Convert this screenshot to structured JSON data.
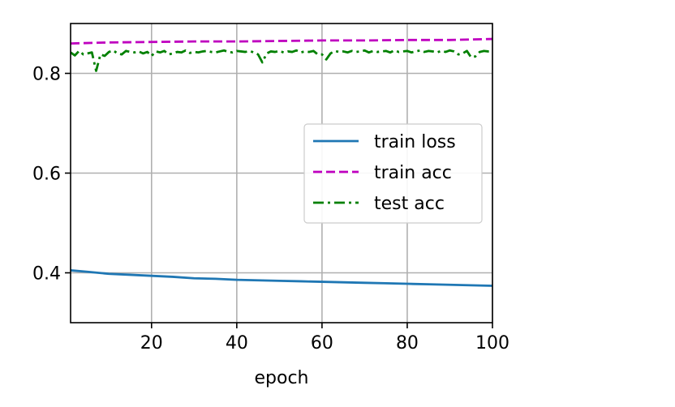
{
  "chart_data": {
    "type": "line",
    "xlabel": "epoch",
    "ylabel": "",
    "xlim": [
      1,
      100
    ],
    "ylim": [
      0.3,
      0.9
    ],
    "xticks": [
      20,
      40,
      60,
      80,
      100
    ],
    "yticks": [
      0.4,
      0.6,
      0.8
    ],
    "grid": true,
    "legend_position": "center-right",
    "series": [
      {
        "name": "train loss",
        "color": "#1f77b4",
        "style": "solid",
        "x": [
          1,
          5,
          10,
          15,
          20,
          25,
          30,
          35,
          40,
          45,
          50,
          55,
          60,
          65,
          70,
          75,
          80,
          85,
          90,
          95,
          100
        ],
        "y": [
          0.405,
          0.402,
          0.398,
          0.396,
          0.394,
          0.392,
          0.389,
          0.388,
          0.386,
          0.385,
          0.384,
          0.383,
          0.382,
          0.381,
          0.38,
          0.379,
          0.378,
          0.377,
          0.376,
          0.375,
          0.374
        ]
      },
      {
        "name": "train acc",
        "color": "#bf00bf",
        "style": "dashed",
        "x": [
          1,
          10,
          20,
          30,
          40,
          50,
          60,
          70,
          80,
          90,
          100
        ],
        "y": [
          0.86,
          0.862,
          0.863,
          0.864,
          0.864,
          0.865,
          0.866,
          0.866,
          0.867,
          0.867,
          0.869
        ]
      },
      {
        "name": "test acc",
        "color": "#008000",
        "style": "dashdot",
        "x": [
          1,
          2,
          3,
          4,
          5,
          6,
          7,
          8,
          9,
          10,
          11,
          12,
          13,
          14,
          15,
          16,
          17,
          18,
          19,
          20,
          21,
          22,
          23,
          24,
          25,
          26,
          27,
          28,
          29,
          30,
          31,
          32,
          33,
          34,
          35,
          36,
          37,
          38,
          39,
          40,
          41,
          42,
          43,
          44,
          45,
          46,
          47,
          48,
          49,
          50,
          51,
          52,
          53,
          54,
          55,
          56,
          57,
          58,
          59,
          60,
          61,
          62,
          63,
          64,
          65,
          66,
          67,
          68,
          69,
          70,
          71,
          72,
          73,
          74,
          75,
          76,
          77,
          78,
          79,
          80,
          81,
          82,
          83,
          84,
          85,
          86,
          87,
          88,
          89,
          90,
          91,
          92,
          93,
          94,
          95,
          96,
          97,
          98,
          99,
          100
        ],
        "y": [
          0.842,
          0.836,
          0.845,
          0.838,
          0.84,
          0.842,
          0.805,
          0.838,
          0.835,
          0.843,
          0.846,
          0.84,
          0.838,
          0.845,
          0.843,
          0.842,
          0.844,
          0.84,
          0.843,
          0.835,
          0.844,
          0.842,
          0.845,
          0.838,
          0.84,
          0.843,
          0.842,
          0.846,
          0.841,
          0.843,
          0.842,
          0.844,
          0.845,
          0.843,
          0.842,
          0.844,
          0.846,
          0.843,
          0.842,
          0.845,
          0.844,
          0.843,
          0.845,
          0.842,
          0.838,
          0.822,
          0.84,
          0.844,
          0.843,
          0.845,
          0.842,
          0.844,
          0.843,
          0.846,
          0.842,
          0.844,
          0.843,
          0.845,
          0.838,
          0.838,
          0.828,
          0.84,
          0.845,
          0.843,
          0.844,
          0.842,
          0.845,
          0.843,
          0.844,
          0.846,
          0.842,
          0.845,
          0.843,
          0.844,
          0.845,
          0.842,
          0.846,
          0.843,
          0.844,
          0.845,
          0.842,
          0.844,
          0.846,
          0.843,
          0.845,
          0.844,
          0.842,
          0.845,
          0.843,
          0.846,
          0.844,
          0.838,
          0.84,
          0.845,
          0.832,
          0.834,
          0.843,
          0.845,
          0.844,
          0.844
        ]
      }
    ]
  }
}
